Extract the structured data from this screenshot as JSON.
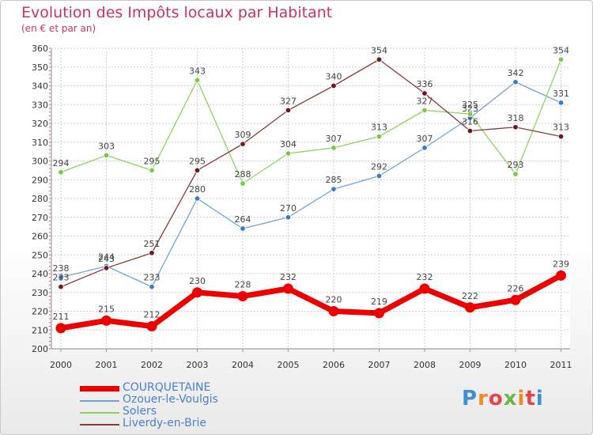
{
  "title": "Evolution des Impôts locaux par Habitant",
  "subtitle": "(en € et par an)",
  "logo": {
    "text": "Proxiti",
    "colors": [
      "#3f8fd8",
      "#f08a24",
      "#e8434d",
      "#69b944",
      "#f08a24",
      "#e8434d",
      "#3f8fd8"
    ]
  },
  "chart_data": {
    "type": "line",
    "title": "Evolution des Impôts locaux par Habitant",
    "subtitle": "(en € et par an)",
    "xlabel": "",
    "ylabel": "",
    "x": [
      "2000",
      "2001",
      "2002",
      "2003",
      "2004",
      "2005",
      "2006",
      "2007",
      "2008",
      "2009",
      "2010",
      "2011"
    ],
    "ylim": [
      200,
      360
    ],
    "yticks": [
      "200",
      "210",
      "220",
      "230",
      "240",
      "250",
      "260",
      "270",
      "280",
      "290",
      "300",
      "310",
      "320",
      "330",
      "340",
      "350",
      "360"
    ],
    "grid": true,
    "legend_position": "bottom-left",
    "series": [
      {
        "name": "COURQUETAINE",
        "color": "#ee0000",
        "line": "#ee0000",
        "marker": "#ee0000",
        "width": 7,
        "radius": 6.5,
        "values": [
          211,
          215,
          212,
          230,
          228,
          232,
          220,
          219,
          232,
          222,
          226,
          239
        ],
        "labels": [
          "211",
          "215",
          "212",
          "230",
          "228",
          "232",
          "220",
          "219",
          "232",
          "222",
          "226",
          "239"
        ]
      },
      {
        "name": "Ozouer-le-Voulgis",
        "color": "#6fa3d6",
        "line": "#6fa3d6",
        "marker": "#3a7cc3",
        "width": 1.3,
        "radius": 3.3,
        "values": [
          238,
          244,
          233,
          280,
          264,
          270,
          285,
          292,
          307,
          323,
          342,
          331
        ],
        "labels": [
          "238",
          "244",
          "233",
          "280",
          "264",
          "270",
          "285",
          "292",
          "307",
          "323",
          "342",
          "331"
        ]
      },
      {
        "name": "Solers",
        "color": "#8bd45a",
        "line": "#8bd45a",
        "marker": "#7ac943",
        "width": 1.3,
        "radius": 3.3,
        "values": [
          294,
          303,
          295,
          343,
          288,
          304,
          307,
          313,
          327,
          325,
          293,
          354
        ],
        "labels": [
          "294",
          "303",
          "295",
          "343",
          "288",
          "304",
          "307",
          "313",
          "327",
          "325",
          "293",
          "354"
        ]
      },
      {
        "name": "Liverdy-en-Brie",
        "color": "#8b3a3a",
        "line": "#8b3a3a",
        "marker": "#6a1a1a",
        "width": 1.3,
        "radius": 3.3,
        "values": [
          233,
          243,
          251,
          295,
          309,
          327,
          340,
          354,
          336,
          316,
          318,
          313
        ],
        "labels": [
          "233",
          "243",
          "251",
          "295",
          "309",
          "327",
          "340",
          "354",
          "336",
          "316",
          "318",
          "313"
        ]
      }
    ]
  }
}
